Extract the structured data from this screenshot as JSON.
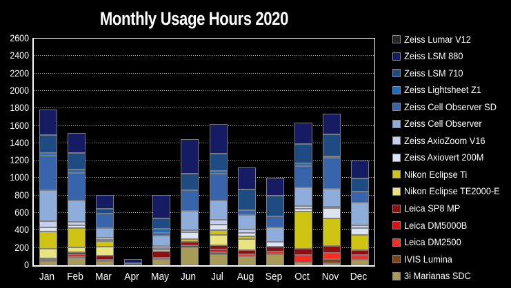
{
  "title": "Monthly Usage Hours 2020",
  "chart_data": {
    "type": "bar",
    "stacked": true,
    "title": "Monthly Usage Hours 2020",
    "xlabel": "",
    "ylabel": "",
    "categories": [
      "Jan",
      "Feb",
      "Mar",
      "Apr",
      "May",
      "Jun",
      "Jul",
      "Aug",
      "Sep",
      "Oct",
      "Nov",
      "Dec"
    ],
    "ylim": [
      0,
      2600
    ],
    "ytick_step": 200,
    "yticks": [
      0,
      200,
      400,
      600,
      800,
      1000,
      1200,
      1400,
      1600,
      1800,
      2000,
      2200,
      2400,
      2600
    ],
    "grid": "dotted-horizontal-white",
    "legend_position": "right",
    "background_color": "#000000",
    "text_color": "#ffffff",
    "plot_border_color": "#ffffff",
    "segment_border_color": "#7e7e7e",
    "stack_order": "first-series-on-top",
    "series": [
      {
        "name": "Zeiss Lumar V12",
        "color": "#262626",
        "values": [
          0,
          0,
          0,
          0,
          0,
          0,
          0,
          0,
          0,
          0,
          0,
          0
        ]
      },
      {
        "name": "Zeiss LSM 880",
        "color": "#161c64",
        "values": [
          290,
          225,
          160,
          45,
          275,
          390,
          335,
          250,
          205,
          245,
          240,
          210
        ]
      },
      {
        "name": "Zeiss LSM 710",
        "color": "#1d4b82",
        "values": [
          205,
          190,
          60,
          25,
          115,
          195,
          205,
          240,
          240,
          225,
          250,
          145
        ]
      },
      {
        "name": "Zeiss Lightsheet Z1",
        "color": "#1d6ec0",
        "values": [
          35,
          40,
          0,
          0,
          45,
          0,
          25,
          0,
          0,
          35,
          15,
          0
        ]
      },
      {
        "name": "Zeiss Cell Observer SD",
        "color": "#3864ac",
        "values": [
          390,
          315,
          165,
          0,
          35,
          235,
          310,
          50,
          125,
          240,
          355,
          130
        ]
      },
      {
        "name": "Zeiss Cell Observer",
        "color": "#8fadda",
        "values": [
          360,
          250,
          105,
          0,
          115,
          220,
          225,
          165,
          165,
          215,
          205,
          260
        ]
      },
      {
        "name": "Zeiss AxioZoom V16",
        "color": "#c6d0ec",
        "values": [
          70,
          35,
          25,
          0,
          25,
          25,
          50,
          40,
          0,
          30,
          15,
          35
        ]
      },
      {
        "name": "Zeiss Axiovert 200M",
        "color": "#dce3f3",
        "values": [
          45,
          35,
          20,
          0,
          20,
          80,
          65,
          40,
          60,
          35,
          125,
          75
        ]
      },
      {
        "name": "Nikon Eclipse Ti",
        "color": "#cfc313",
        "values": [
          200,
          220,
          60,
          0,
          25,
          30,
          55,
          35,
          0,
          425,
          310,
          175
        ]
      },
      {
        "name": "Nikon Eclipse TE2000-E",
        "color": "#e9e380",
        "values": [
          110,
          55,
          105,
          0,
          0,
          0,
          120,
          125,
          0,
          0,
          0,
          0
        ]
      },
      {
        "name": "Leica SP8 MP",
        "color": "#8e0f12",
        "values": [
          15,
          20,
          45,
          0,
          65,
          40,
          50,
          45,
          50,
          75,
          85,
          60
        ]
      },
      {
        "name": "Leica DM5000B",
        "color": "#de1013",
        "values": [
          15,
          25,
          0,
          0,
          0,
          0,
          30,
          0,
          0,
          0,
          0,
          0
        ]
      },
      {
        "name": "Leica DM2500",
        "color": "#fb2d23",
        "values": [
          0,
          0,
          0,
          0,
          0,
          0,
          0,
          25,
          30,
          85,
          70,
          50
        ]
      },
      {
        "name": "IVIS Lumina",
        "color": "#7c4414",
        "values": [
          0,
          15,
          15,
          0,
          15,
          25,
          25,
          0,
          0,
          0,
          45,
          0
        ]
      },
      {
        "name": "3i Marianas SDC",
        "color": "#a89b58",
        "values": [
          50,
          90,
          50,
          0,
          75,
          205,
          125,
          105,
          130,
          30,
          25,
          65
        ]
      }
    ]
  }
}
